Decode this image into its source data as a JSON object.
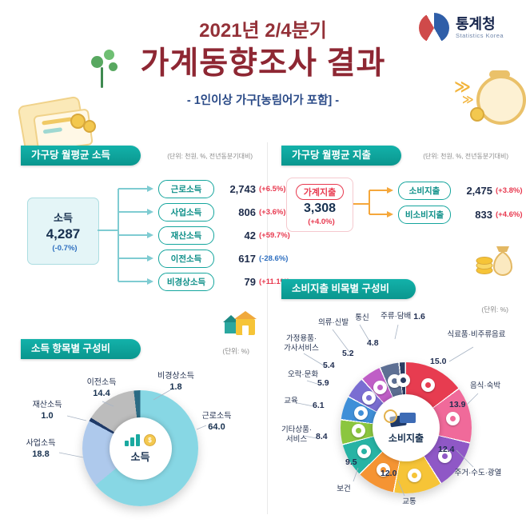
{
  "header": {
    "subtitle": "2021년 2/4분기",
    "title": "가계동향조사 결과",
    "note": "- 1인이상 가구[농림어가 포함] -",
    "logo": {
      "name": "통계청",
      "name_en": "Statistics Korea"
    },
    "decor_chevron": "≫"
  },
  "left": {
    "income_section": {
      "title": "가구당 월평균 소득",
      "unit": "(단위: 천원, %, 전년동분기대비)",
      "total": {
        "label": "소득",
        "value": "4,287",
        "change": "(-0.7%)"
      },
      "items": [
        {
          "label": "근로소득",
          "value": "2,743",
          "change": "(+6.5%)"
        },
        {
          "label": "사업소득",
          "value": "806",
          "change": "(+3.6%)"
        },
        {
          "label": "재산소득",
          "value": "42",
          "change": "(+59.7%)"
        },
        {
          "label": "이전소득",
          "value": "617",
          "change": "(-28.6%)"
        },
        {
          "label": "비경상소득",
          "value": "79",
          "change": "(+11.1%)"
        }
      ]
    },
    "composition_section": {
      "title": "소득 항목별 구성비",
      "unit": "(단위: %)"
    }
  },
  "right": {
    "expenditure_section": {
      "title": "가구당 월평균 지출",
      "unit": "(단위: 천원, %, 전년동분기대비)",
      "total": {
        "label": "가계지출",
        "value": "3,308",
        "change": "(+4.0%)"
      },
      "items": [
        {
          "label": "소비지출",
          "value": "2,475",
          "change": "(+3.8%)"
        },
        {
          "label": "비소비지출",
          "value": "833",
          "change": "(+4.6%)"
        }
      ]
    },
    "composition_section": {
      "title": "소비지출 비목별 구성비",
      "unit": "(단위: %)"
    }
  },
  "chart_data": [
    {
      "type": "pie",
      "title": "소득 항목별 구성비",
      "unit": "%",
      "center_label": "소득",
      "legend_position": "callouts",
      "slices": [
        {
          "label": "근로소득",
          "value": 64.0,
          "value_label": "64.0",
          "color": "#87d7e4"
        },
        {
          "label": "사업소득",
          "value": 18.8,
          "value_label": "18.8",
          "color": "#aec9ec"
        },
        {
          "label": "재산소득",
          "value": 1.0,
          "value_label": "1.0",
          "color": "#1f3a68"
        },
        {
          "label": "이전소득",
          "value": 14.4,
          "value_label": "14.4",
          "color": "#bcbcbc"
        },
        {
          "label": "비경상소득",
          "value": 1.8,
          "value_label": "1.8",
          "color": "#2b6b84"
        }
      ]
    },
    {
      "type": "pie",
      "title": "소비지출 비목별 구성비",
      "unit": "%",
      "center_label": "소비지출",
      "legend_position": "callouts",
      "slices": [
        {
          "label": "식료품·비주류음료",
          "value": 15.0,
          "value_label": "15.0",
          "color": "#e73c50",
          "icon": "food-icon"
        },
        {
          "label": "음식·숙박",
          "value": 13.9,
          "value_label": "13.9",
          "color": "#f06a9a",
          "icon": "dining-icon"
        },
        {
          "label": "주거·수도·광열",
          "value": 12.4,
          "value_label": "12.4",
          "color": "#8f58c6",
          "icon": "housing-icon"
        },
        {
          "label": "교통",
          "value": 12.0,
          "value_label": "12.0",
          "color": "#f6c437",
          "icon": "transport-icon"
        },
        {
          "label": "보건",
          "value": 9.5,
          "value_label": "9.5",
          "color": "#f59433",
          "icon": "health-icon"
        },
        {
          "label": "기타상품·서비스",
          "value": 8.4,
          "value_label": "8.4",
          "color": "#27b3a4",
          "icon": "misc-goods-icon"
        },
        {
          "label": "교육",
          "value": 6.1,
          "value_label": "6.1",
          "color": "#8bc63f",
          "icon": "education-icon"
        },
        {
          "label": "오락·문화",
          "value": 5.9,
          "value_label": "5.9",
          "color": "#3f8fd8",
          "icon": "culture-icon"
        },
        {
          "label": "가정용품·가사서비스",
          "value": 5.4,
          "value_label": "5.4",
          "color": "#7a6ed2",
          "icon": "household-icon"
        },
        {
          "label": "의류·신발",
          "value": 5.2,
          "value_label": "5.2",
          "color": "#bf5ec6",
          "icon": "clothing-icon"
        },
        {
          "label": "통신",
          "value": 4.8,
          "value_label": "4.8",
          "color": "#5d6f93",
          "icon": "telecom-icon"
        },
        {
          "label": "주류·담배",
          "value": 1.6,
          "value_label": "1.6",
          "color": "#2b3c62",
          "icon": "alcohol-tobacco-icon"
        }
      ]
    }
  ]
}
